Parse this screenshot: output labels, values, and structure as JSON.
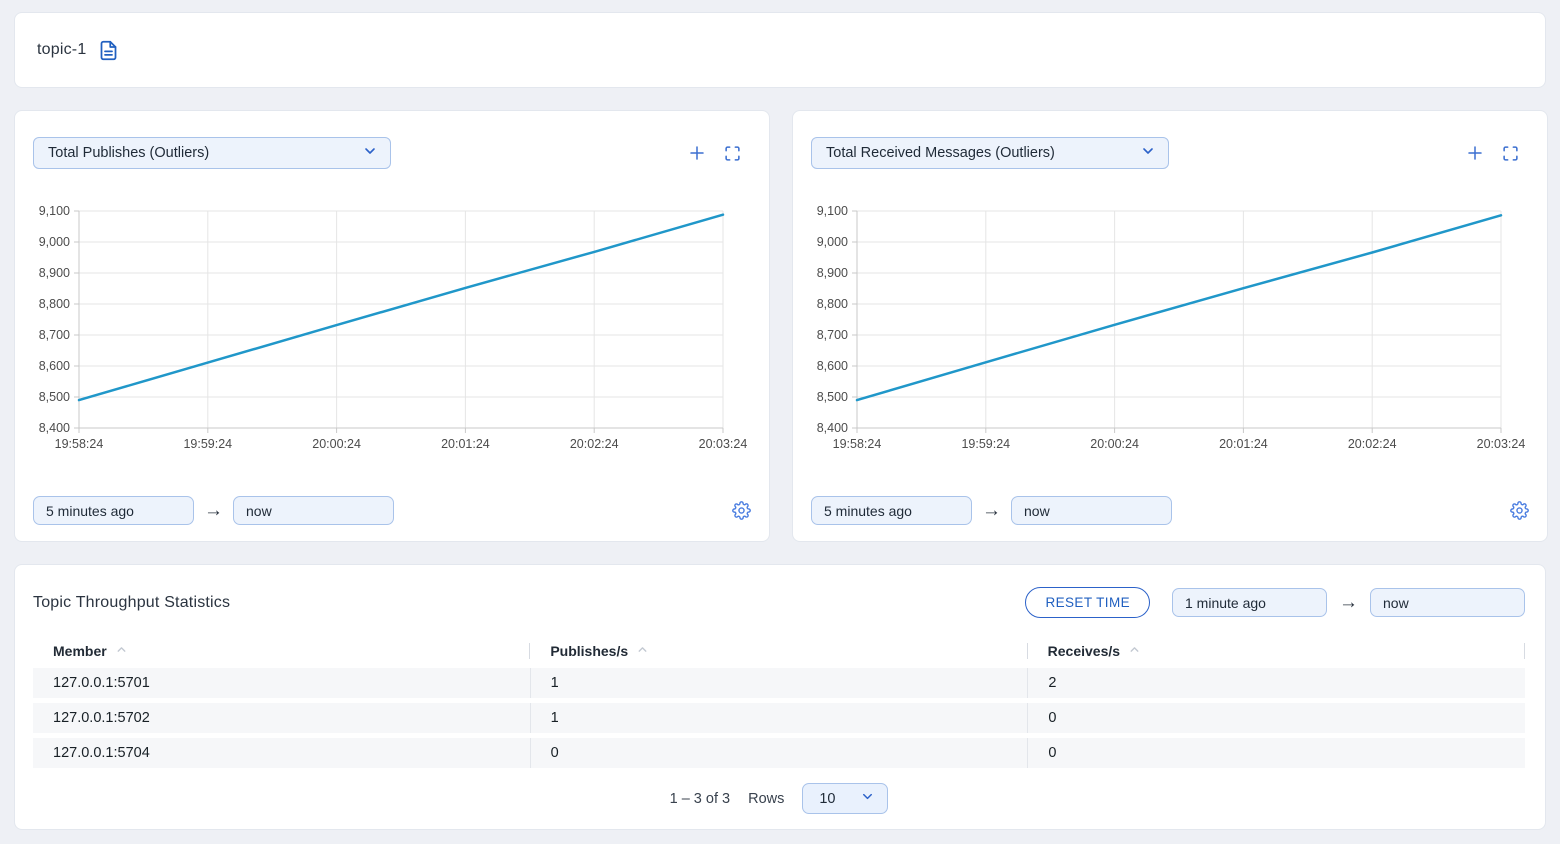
{
  "colors": {
    "accent_blue": "#2c62c9",
    "icon_blue": "#3b6fd0",
    "gear_blue": "#4a7de0",
    "line_blue": "#2097c9",
    "input_bg": "#edf3fc",
    "input_border": "#a9c3ea",
    "page_bg": "#eef0f5"
  },
  "topic_header": {
    "title": "topic-1",
    "icon": "file-text-icon"
  },
  "chart_panels": [
    {
      "metric_selector": "Total Publishes (Outliers)",
      "time_from": "5 minutes ago",
      "time_to": "now"
    },
    {
      "metric_selector": "Total Received Messages (Outliers)",
      "time_from": "5 minutes ago",
      "time_to": "now"
    }
  ],
  "chart_data": [
    {
      "type": "line",
      "title": "Total Publishes (Outliers)",
      "x": [
        "19:58:24",
        "19:59:24",
        "20:00:24",
        "20:01:24",
        "20:02:24",
        "20:03:24"
      ],
      "values": [
        8490,
        8611,
        8732,
        8852,
        8968,
        9088
      ],
      "ylim": [
        8400,
        9100
      ],
      "yticks": [
        8400,
        8500,
        8600,
        8700,
        8800,
        8900,
        9000,
        9100
      ],
      "grid": true,
      "legend": "none",
      "line_color": "#2097c9"
    },
    {
      "type": "line",
      "title": "Total Received Messages (Outliers)",
      "x": [
        "19:58:24",
        "19:59:24",
        "20:00:24",
        "20:01:24",
        "20:02:24",
        "20:03:24"
      ],
      "values": [
        8490,
        8612,
        8733,
        8851,
        8966,
        9086
      ],
      "ylim": [
        8400,
        9100
      ],
      "yticks": [
        8400,
        8500,
        8600,
        8700,
        8800,
        8900,
        9000,
        9100
      ],
      "grid": true,
      "legend": "none",
      "line_color": "#2097c9"
    }
  ],
  "stats_panel": {
    "title": "Topic Throughput Statistics",
    "reset_time_button": "RESET TIME",
    "time_from": "1 minute ago",
    "time_to": "now",
    "table": {
      "columns": [
        "Member",
        "Publishes/s",
        "Receives/s"
      ],
      "rows": [
        {
          "member": "127.0.0.1:5701",
          "publishes_per_s": "1",
          "receives_per_s": "2"
        },
        {
          "member": "127.0.0.1:5702",
          "publishes_per_s": "1",
          "receives_per_s": "0"
        },
        {
          "member": "127.0.0.1:5704",
          "publishes_per_s": "0",
          "receives_per_s": "0"
        }
      ]
    },
    "pagination": {
      "range_text": "1 – 3 of 3",
      "rows_label": "Rows",
      "page_size": "10"
    }
  }
}
